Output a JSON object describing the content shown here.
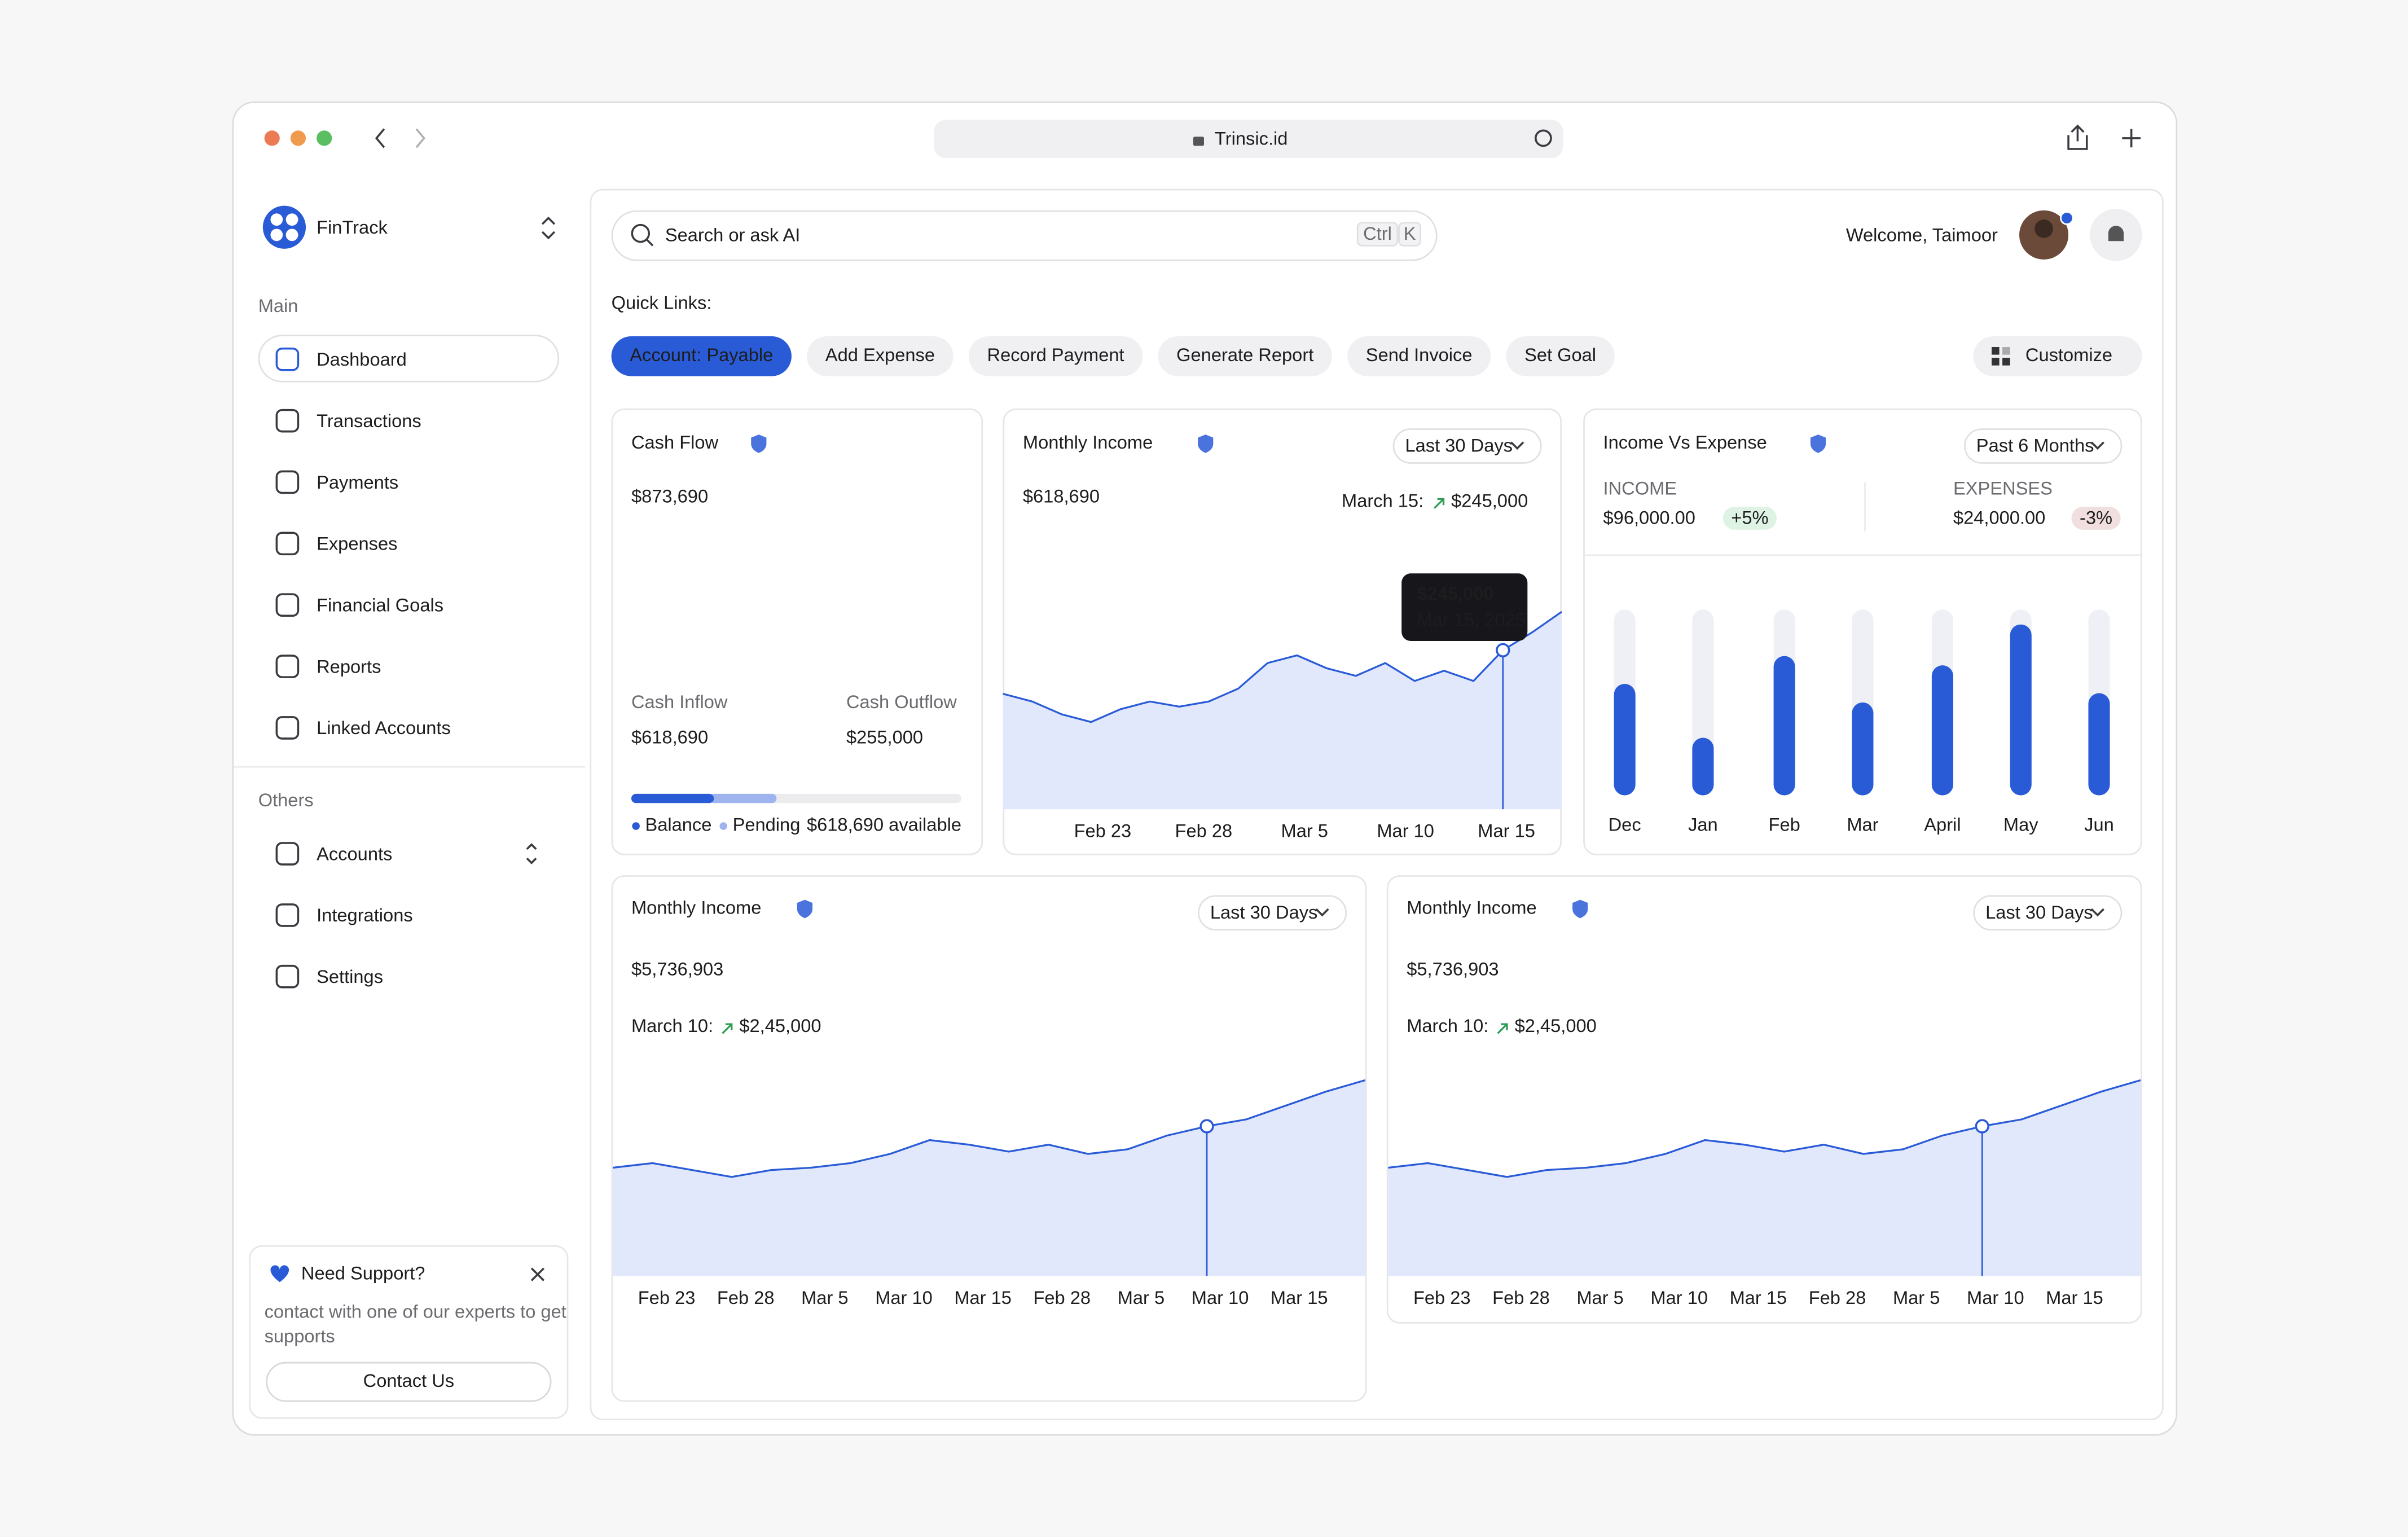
{
  "browser": {
    "url": "Trinsic.id"
  },
  "sidebar": {
    "brand": "FinTrack",
    "main_label": "Main",
    "main_items": [
      "Dashboard",
      "Transactions",
      "Payments",
      "Expenses",
      "Financial Goals",
      "Reports",
      "Linked Accounts"
    ],
    "others_label": "Others",
    "other_items": [
      "Accounts",
      "Integrations",
      "Settings"
    ],
    "support": {
      "title": "Need Support?",
      "text": [
        "contact with one of our experts to get",
        "supports"
      ],
      "button": "Contact Us"
    }
  },
  "header": {
    "search_placeholder": "Search or ask AI",
    "shortcut": [
      "Ctrl",
      "K"
    ],
    "welcome": "Welcome, Taimoor"
  },
  "quick_links": {
    "label": "Quick Links:",
    "items": [
      "Account: Payable",
      "Add Expense",
      "Record Payment",
      "Generate Report",
      "Send Invoice",
      "Set Goal"
    ],
    "customize": "Customize"
  },
  "cash_flow": {
    "title": "Cash Flow",
    "total": "$873,690",
    "inflow_label": "Cash Inflow",
    "inflow": "$618,690",
    "outflow_label": "Cash Outflow",
    "outflow": "$255,000",
    "progress": {
      "balance": 25,
      "pending": 19
    },
    "legend": [
      "Balance",
      "Pending"
    ],
    "available": "$618,690 available"
  },
  "monthly_income": {
    "title": "Monthly Income",
    "range": "Last 30 Days",
    "total": "$618,690",
    "note_label": "March 15:",
    "note_value": "$245,000",
    "tooltip": {
      "value": "$245,000",
      "date": "Mar 15, 2025"
    },
    "chart": {
      "type": "line",
      "xlabels": [
        "Feb 23",
        "Feb 28",
        "Mar 5",
        "Mar 10",
        "Mar 15"
      ],
      "values": [
        45,
        42,
        37,
        34,
        39,
        42,
        40,
        42,
        47,
        57,
        60,
        55,
        52,
        57,
        50,
        54,
        50,
        62,
        69,
        77
      ],
      "ylim": [
        0,
        100
      ],
      "highlight_index": 17
    }
  },
  "income_vs_expense": {
    "title": "Income Vs Expense",
    "range": "Past 6 Months",
    "income_label": "INCOME",
    "income": "$96,000.00",
    "income_change": "+5%",
    "expense_label": "EXPENSES",
    "expense": "$24,000.00",
    "expense_change": "-3%",
    "chart": {
      "type": "bar",
      "categories": [
        "Dec",
        "Jan",
        "Feb",
        "Mar",
        "April",
        "May",
        "Jun"
      ],
      "values": [
        60,
        31,
        75,
        50,
        70,
        92,
        55
      ],
      "ylim": [
        0,
        100
      ]
    }
  },
  "bottom_cards": [
    {
      "title": "Monthly Income",
      "range": "Last 30 Days",
      "total": "$5,736,903",
      "note_label": "March 10:",
      "note_value": "$2,45,000",
      "chart": {
        "type": "line",
        "xlabels": [
          "Feb 23",
          "Feb 28",
          "Mar 5",
          "Mar 10",
          "Mar 15",
          "Feb 28",
          "Mar 5",
          "Mar 10",
          "Mar 15"
        ],
        "values": [
          47,
          49,
          46,
          43,
          46,
          47,
          49,
          53,
          59,
          57,
          54,
          57,
          53,
          55,
          61,
          65,
          68,
          74,
          80,
          85
        ],
        "ylim": [
          0,
          100
        ],
        "highlight_index": 15
      }
    },
    {
      "title": "Monthly Income",
      "range": "Last 30 Days",
      "total": "$5,736,903",
      "note_label": "March 10:",
      "note_value": "$2,45,000",
      "chart": {
        "type": "line",
        "xlabels": [
          "Feb 23",
          "Feb 28",
          "Mar 5",
          "Mar 10",
          "Mar 15",
          "Feb 28",
          "Mar 5",
          "Mar 10",
          "Mar 15"
        ],
        "values": [
          47,
          49,
          46,
          43,
          46,
          47,
          49,
          53,
          59,
          57,
          54,
          57,
          53,
          55,
          61,
          65,
          68,
          74,
          80,
          85
        ],
        "ylim": [
          0,
          100
        ],
        "highlight_index": 15
      }
    }
  ]
}
